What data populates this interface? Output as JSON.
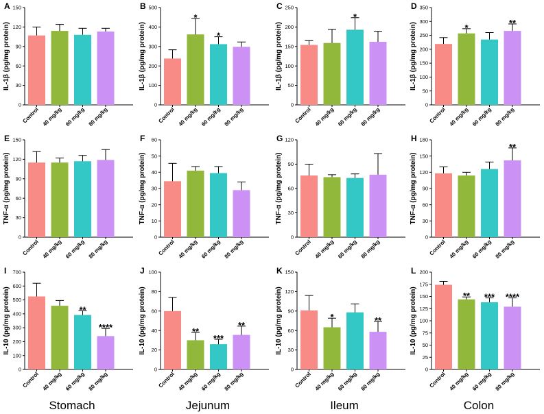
{
  "chart_data": {
    "type": "bar",
    "categories": [
      "Control",
      "40 mg/kg",
      "60 mg/kg",
      "80 mg/kg"
    ],
    "colors": [
      "#F88B85",
      "#91B83B",
      "#33C8C5",
      "#CC91F5"
    ],
    "regions": [
      "Stomach",
      "Jejunum",
      "Ileum",
      "Colon"
    ],
    "panels": [
      {
        "label": "A",
        "ylabel": "IL-1β (pg/mg protein)",
        "ylim": [
          0,
          150
        ],
        "ticks": [
          0,
          30,
          60,
          90,
          120,
          150
        ],
        "values": [
          107,
          114,
          108,
          113
        ],
        "errors": [
          13,
          10,
          10,
          5
        ],
        "sig": [
          "",
          "",
          "",
          ""
        ]
      },
      {
        "label": "B",
        "ylabel": "IL-1β (pg/mg protein)",
        "ylim": [
          0,
          500
        ],
        "ticks": [
          0,
          100,
          200,
          300,
          400,
          500
        ],
        "values": [
          238,
          362,
          312,
          298
        ],
        "errors": [
          45,
          82,
          38,
          25
        ],
        "sig": [
          "",
          "*",
          "*",
          ""
        ]
      },
      {
        "label": "C",
        "ylabel": "IL-1β (pg/mg protein)",
        "ylim": [
          0,
          250
        ],
        "ticks": [
          0,
          50,
          100,
          150,
          200,
          250
        ],
        "values": [
          154,
          159,
          193,
          162
        ],
        "errors": [
          11,
          35,
          31,
          27
        ],
        "sig": [
          "",
          "",
          "*",
          ""
        ]
      },
      {
        "label": "D",
        "ylabel": "IL-1β (pg/mg protein)",
        "ylim": [
          0,
          350
        ],
        "ticks": [
          0,
          50,
          100,
          150,
          200,
          250,
          300,
          350
        ],
        "values": [
          219,
          257,
          235,
          266
        ],
        "errors": [
          23,
          17,
          25,
          25
        ],
        "sig": [
          "",
          "*",
          "",
          "**"
        ]
      },
      {
        "label": "E",
        "ylabel": "TNF-α (pg/mg protein)",
        "ylim": [
          0,
          150
        ],
        "ticks": [
          0,
          30,
          60,
          90,
          120,
          150
        ],
        "values": [
          115,
          115,
          117,
          119
        ],
        "errors": [
          17,
          7,
          9,
          16
        ],
        "sig": [
          "",
          "",
          "",
          ""
        ]
      },
      {
        "label": "F",
        "ylabel": "TNF-α (pg/mg protein)",
        "ylim": [
          0,
          60
        ],
        "ticks": [
          0,
          10,
          20,
          30,
          40,
          50,
          60
        ],
        "values": [
          34.5,
          41,
          39.5,
          29
        ],
        "errors": [
          11,
          2.5,
          4,
          5
        ],
        "sig": [
          "",
          "",
          "",
          ""
        ]
      },
      {
        "label": "G",
        "ylabel": "TNF-α (pg/mg protein)",
        "ylim": [
          0,
          120
        ],
        "ticks": [
          0,
          30,
          60,
          90,
          120
        ],
        "values": [
          76,
          74,
          73,
          77
        ],
        "errors": [
          14,
          3,
          5,
          26
        ],
        "sig": [
          "",
          "",
          "",
          ""
        ]
      },
      {
        "label": "H",
        "ylabel": "TNF-α (pg/mg protein)",
        "ylim": [
          0,
          180
        ],
        "ticks": [
          0,
          30,
          60,
          90,
          120,
          150,
          180
        ],
        "values": [
          118,
          114,
          126,
          142
        ],
        "errors": [
          12,
          6,
          13,
          23
        ],
        "sig": [
          "",
          "",
          "",
          "**"
        ]
      },
      {
        "label": "I",
        "ylabel": "IL-10 (pg/mg protein)",
        "ylim": [
          0,
          700
        ],
        "ticks": [
          0,
          100,
          200,
          300,
          400,
          500,
          600,
          700
        ],
        "values": [
          525,
          458,
          392,
          240
        ],
        "errors": [
          95,
          38,
          30,
          55
        ],
        "sig": [
          "",
          "",
          "**",
          "****"
        ]
      },
      {
        "label": "J",
        "ylabel": "IL-10 (pg/mg protein)",
        "ylim": [
          0,
          100
        ],
        "ticks": [
          0,
          20,
          40,
          60,
          80,
          100
        ],
        "values": [
          60,
          30,
          26,
          35.5
        ],
        "errors": [
          14,
          8,
          5,
          9
        ],
        "sig": [
          "",
          "**",
          "***",
          "**"
        ]
      },
      {
        "label": "K",
        "ylabel": "IL-10 (pg/mg protein)",
        "ylim": [
          0,
          150
        ],
        "ticks": [
          0,
          30,
          60,
          90,
          120,
          150
        ],
        "values": [
          91,
          65,
          88,
          58
        ],
        "errors": [
          23,
          14,
          13,
          16
        ],
        "sig": [
          "",
          "*",
          "",
          "**"
        ]
      },
      {
        "label": "L",
        "ylabel": "IL-10 (pg/mg protein)",
        "ylim": [
          0,
          200
        ],
        "ticks": [
          0,
          25,
          50,
          75,
          100,
          125,
          150,
          175,
          200
        ],
        "values": [
          174,
          144,
          138,
          129
        ],
        "errors": [
          7,
          5,
          9,
          18
        ],
        "sig": [
          "",
          "**",
          "***",
          "****"
        ]
      }
    ]
  }
}
